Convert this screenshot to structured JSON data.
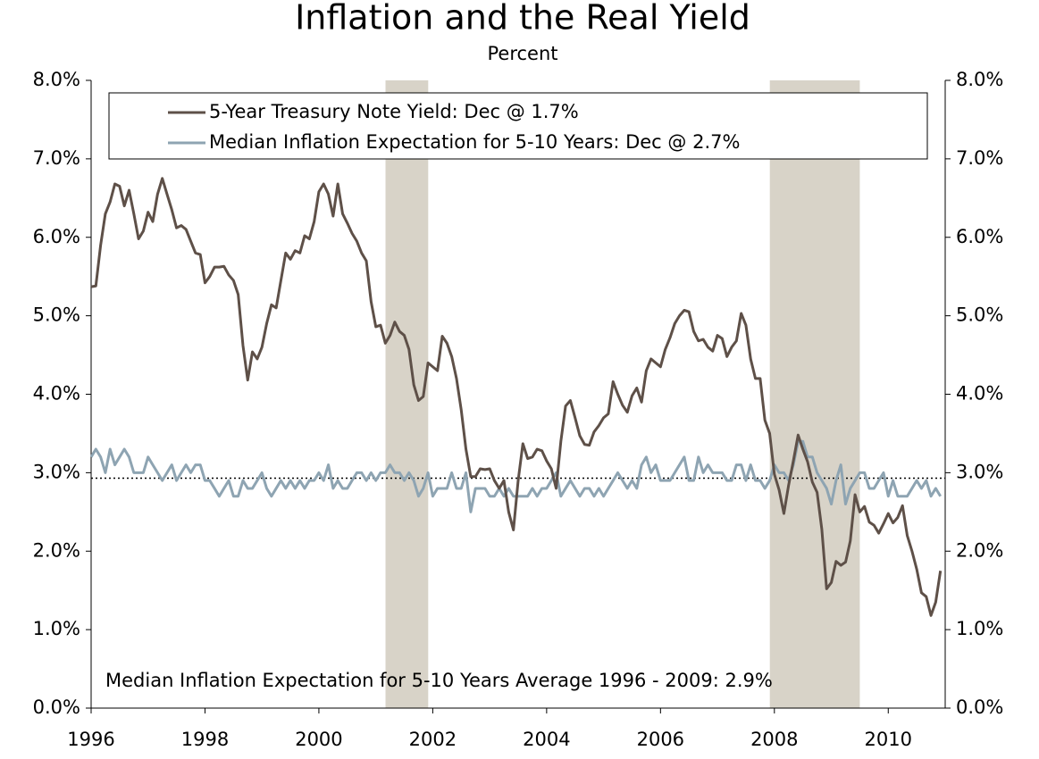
{
  "chart_data": {
    "type": "line",
    "title": "Inflation and the Real Yield",
    "subtitle": "Percent",
    "annotation": "Median Inflation Expectation for 5-10 Years Average 1996 - 2009: 2.9%",
    "xlim": [
      1996,
      2011
    ],
    "xticks": [
      1996,
      1998,
      2000,
      2002,
      2004,
      2006,
      2008,
      2010
    ],
    "ylim": [
      0,
      8
    ],
    "yticks": [
      {
        "value": 0,
        "label": "0.0%"
      },
      {
        "value": 1,
        "label": "1.0%"
      },
      {
        "value": 2,
        "label": "2.0%"
      },
      {
        "value": 3,
        "label": "3.0%"
      },
      {
        "value": 4,
        "label": "4.0%"
      },
      {
        "value": 5,
        "label": "5.0%"
      },
      {
        "value": 6,
        "label": "6.0%"
      },
      {
        "value": 7,
        "label": "7.0%"
      },
      {
        "value": 8,
        "label": "8.0%"
      }
    ],
    "y2lim": [
      0,
      8
    ],
    "y2ticks": [
      {
        "value": 0,
        "label": "0.0%"
      },
      {
        "value": 1,
        "label": "1.0%"
      },
      {
        "value": 2,
        "label": "2.0%"
      },
      {
        "value": 3,
        "label": "3.0%"
      },
      {
        "value": 4,
        "label": "4.0%"
      },
      {
        "value": 5,
        "label": "5.0%"
      },
      {
        "value": 6,
        "label": "6.0%"
      },
      {
        "value": 7,
        "label": "7.0%"
      },
      {
        "value": 8,
        "label": "8.0%"
      }
    ],
    "shaded_regions": [
      [
        2001.17,
        2001.92
      ],
      [
        2007.92,
        2009.5
      ]
    ],
    "shade_color": "#d8d3c8",
    "reference_line": 2.93,
    "legend": "top",
    "x": [
      1996,
      1996.083,
      1996.167,
      1996.25,
      1996.333,
      1996.417,
      1996.5,
      1996.583,
      1996.667,
      1996.75,
      1996.833,
      1996.917,
      1997,
      1997.083,
      1997.167,
      1997.25,
      1997.333,
      1997.417,
      1997.5,
      1997.583,
      1997.667,
      1997.75,
      1997.833,
      1997.917,
      1998,
      1998.083,
      1998.167,
      1998.25,
      1998.333,
      1998.417,
      1998.5,
      1998.583,
      1998.667,
      1998.75,
      1998.833,
      1998.917,
      1999,
      1999.083,
      1999.167,
      1999.25,
      1999.333,
      1999.417,
      1999.5,
      1999.583,
      1999.667,
      1999.75,
      1999.833,
      1999.917,
      2000,
      2000.083,
      2000.167,
      2000.25,
      2000.333,
      2000.417,
      2000.5,
      2000.583,
      2000.667,
      2000.75,
      2000.833,
      2000.917,
      2001,
      2001.083,
      2001.167,
      2001.25,
      2001.333,
      2001.417,
      2001.5,
      2001.583,
      2001.667,
      2001.75,
      2001.833,
      2001.917,
      2002,
      2002.083,
      2002.167,
      2002.25,
      2002.333,
      2002.417,
      2002.5,
      2002.583,
      2002.667,
      2002.75,
      2002.833,
      2002.917,
      2003,
      2003.083,
      2003.167,
      2003.25,
      2003.333,
      2003.417,
      2003.5,
      2003.583,
      2003.667,
      2003.75,
      2003.833,
      2003.917,
      2004,
      2004.083,
      2004.167,
      2004.25,
      2004.333,
      2004.417,
      2004.5,
      2004.583,
      2004.667,
      2004.75,
      2004.833,
      2004.917,
      2005,
      2005.083,
      2005.167,
      2005.25,
      2005.333,
      2005.417,
      2005.5,
      2005.583,
      2005.667,
      2005.75,
      2005.833,
      2005.917,
      2006,
      2006.083,
      2006.167,
      2006.25,
      2006.333,
      2006.417,
      2006.5,
      2006.583,
      2006.667,
      2006.75,
      2006.833,
      2006.917,
      2007,
      2007.083,
      2007.167,
      2007.25,
      2007.333,
      2007.417,
      2007.5,
      2007.583,
      2007.667,
      2007.75,
      2007.833,
      2007.917,
      2008,
      2008.083,
      2008.167,
      2008.25,
      2008.333,
      2008.417,
      2008.5,
      2008.583,
      2008.667,
      2008.75,
      2008.833,
      2008.917,
      2009,
      2009.083,
      2009.167,
      2009.25,
      2009.333,
      2009.417,
      2009.5,
      2009.583,
      2009.667,
      2009.75,
      2009.833,
      2009.917,
      2010,
      2010.083,
      2010.167,
      2010.25,
      2010.333,
      2010.417,
      2010.5,
      2010.583,
      2010.667,
      2010.75,
      2010.833,
      2010.917
    ],
    "series": [
      {
        "name": "5-Year Treasury Note Yield: Dec @ 1.7%",
        "color": "#5e5048",
        "values": [
          5.37,
          5.38,
          5.9,
          6.3,
          6.45,
          6.68,
          6.65,
          6.4,
          6.6,
          6.3,
          5.98,
          6.08,
          6.32,
          6.2,
          6.55,
          6.75,
          6.55,
          6.35,
          6.12,
          6.15,
          6.1,
          5.95,
          5.8,
          5.78,
          5.42,
          5.5,
          5.62,
          5.62,
          5.63,
          5.52,
          5.45,
          5.27,
          4.62,
          4.18,
          4.54,
          4.45,
          4.6,
          4.9,
          5.14,
          5.1,
          5.45,
          5.8,
          5.72,
          5.83,
          5.8,
          6.02,
          5.98,
          6.2,
          6.58,
          6.68,
          6.55,
          6.27,
          6.68,
          6.3,
          6.18,
          6.05,
          5.95,
          5.8,
          5.7,
          5.18,
          4.86,
          4.88,
          4.65,
          4.75,
          4.92,
          4.8,
          4.75,
          4.57,
          4.12,
          3.92,
          3.97,
          4.4,
          4.35,
          4.3,
          4.74,
          4.65,
          4.48,
          4.2,
          3.8,
          3.3,
          2.95,
          2.95,
          3.05,
          3.04,
          3.05,
          2.9,
          2.8,
          2.9,
          2.5,
          2.27,
          2.9,
          3.37,
          3.18,
          3.2,
          3.3,
          3.28,
          3.15,
          3.05,
          2.8,
          3.4,
          3.85,
          3.92,
          3.7,
          3.47,
          3.36,
          3.35,
          3.52,
          3.6,
          3.7,
          3.75,
          4.16,
          4.0,
          3.86,
          3.77,
          3.98,
          4.08,
          3.9,
          4.3,
          4.45,
          4.4,
          4.35,
          4.57,
          4.72,
          4.9,
          5.0,
          5.07,
          5.05,
          4.8,
          4.68,
          4.7,
          4.6,
          4.55,
          4.75,
          4.71,
          4.48,
          4.6,
          4.68,
          5.03,
          4.88,
          4.45,
          4.2,
          4.2,
          3.67,
          3.5,
          2.98,
          2.78,
          2.48,
          2.84,
          3.15,
          3.48,
          3.3,
          3.14,
          2.88,
          2.75,
          2.28,
          1.52,
          1.6,
          1.87,
          1.82,
          1.86,
          2.13,
          2.72,
          2.5,
          2.57,
          2.37,
          2.33,
          2.23,
          2.35,
          2.48,
          2.36,
          2.43,
          2.58,
          2.2,
          2.0,
          1.77,
          1.47,
          1.42,
          1.18,
          1.35,
          1.75
        ]
      },
      {
        "name": "Median Inflation Expectation for 5-10 Years: Dec @ 2.7%",
        "color": "#8ea4b2",
        "values": [
          3.2,
          3.3,
          3.2,
          3.0,
          3.3,
          3.1,
          3.2,
          3.3,
          3.2,
          3.0,
          3.0,
          3.0,
          3.2,
          3.1,
          3.0,
          2.9,
          3.0,
          3.1,
          2.9,
          3.0,
          3.1,
          3.0,
          3.1,
          3.1,
          2.9,
          2.9,
          2.8,
          2.7,
          2.8,
          2.9,
          2.7,
          2.7,
          2.9,
          2.8,
          2.8,
          2.9,
          3.0,
          2.8,
          2.7,
          2.8,
          2.9,
          2.8,
          2.9,
          2.8,
          2.9,
          2.8,
          2.9,
          2.9,
          3.0,
          2.9,
          3.1,
          2.8,
          2.9,
          2.8,
          2.8,
          2.9,
          3.0,
          3.0,
          2.9,
          3.0,
          2.9,
          3.0,
          3.0,
          3.1,
          3.0,
          3.0,
          2.9,
          3.0,
          2.9,
          2.7,
          2.8,
          3.0,
          2.7,
          2.8,
          2.8,
          2.8,
          3.0,
          2.8,
          2.8,
          3.0,
          2.5,
          2.8,
          2.8,
          2.8,
          2.7,
          2.7,
          2.8,
          2.7,
          2.8,
          2.7,
          2.7,
          2.7,
          2.7,
          2.8,
          2.7,
          2.8,
          2.8,
          2.9,
          3.0,
          2.7,
          2.8,
          2.9,
          2.8,
          2.7,
          2.8,
          2.8,
          2.7,
          2.8,
          2.7,
          2.8,
          2.9,
          3.0,
          2.9,
          2.8,
          2.9,
          2.8,
          3.1,
          3.2,
          3.0,
          3.1,
          2.9,
          2.9,
          2.9,
          3.0,
          3.1,
          3.2,
          2.9,
          2.9,
          3.2,
          3.0,
          3.1,
          3.0,
          3.0,
          3.0,
          2.9,
          2.9,
          3.1,
          3.1,
          2.9,
          3.1,
          2.9,
          2.9,
          2.8,
          2.9,
          3.1,
          3.0,
          3.0,
          2.9,
          3.1,
          3.4,
          3.4,
          3.2,
          3.2,
          3.0,
          2.9,
          2.8,
          2.6,
          2.9,
          3.1,
          2.6,
          2.8,
          2.9,
          3.0,
          3.0,
          2.8,
          2.8,
          2.9,
          3.0,
          2.7,
          2.9,
          2.7,
          2.7,
          2.7,
          2.8,
          2.9,
          2.8,
          2.9,
          2.7,
          2.8,
          2.7
        ]
      }
    ]
  }
}
